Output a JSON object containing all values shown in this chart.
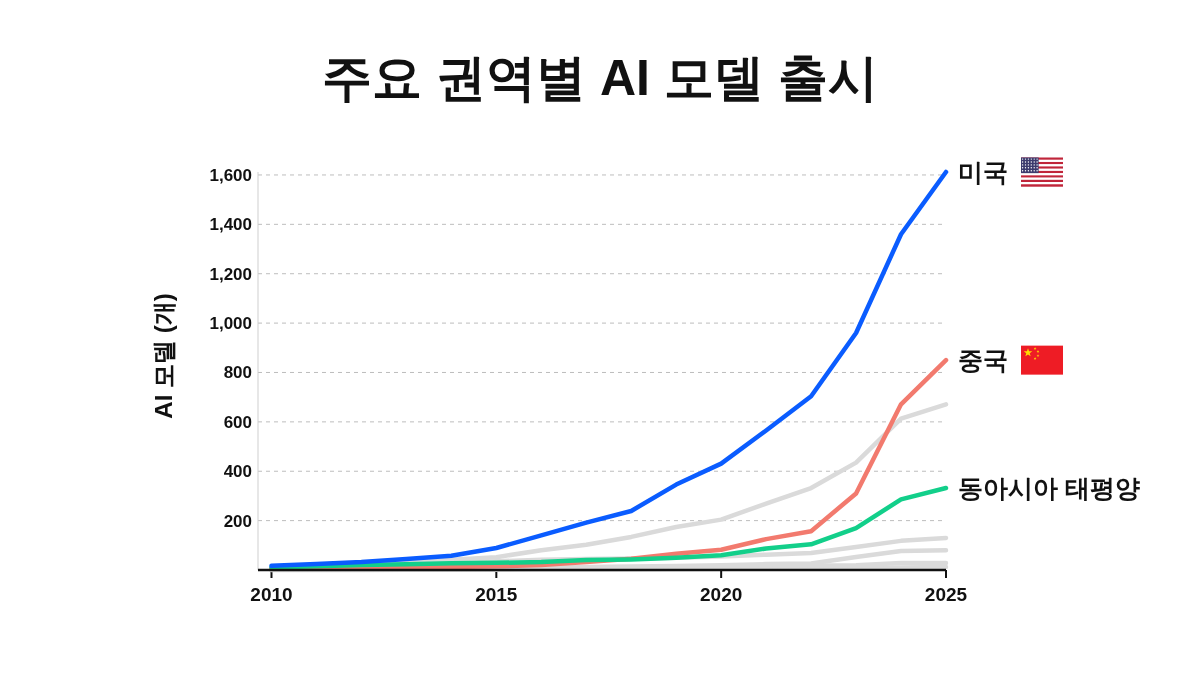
{
  "chart_data": {
    "type": "line",
    "title": "주요 권역별 AI 모델 출시",
    "ylabel": "AI 모델 (개)",
    "x": [
      2010,
      2011,
      2012,
      2013,
      2014,
      2015,
      2016,
      2017,
      2018,
      2019,
      2020,
      2021,
      2022,
      2023,
      2024,
      2025
    ],
    "series": [
      {
        "name": "미국",
        "color": "#0a5cff",
        "values": [
          17,
          24,
          32,
          45,
          58,
          89,
          140,
          192,
          239,
          346,
          431,
          565,
          704,
          960,
          1360,
          1612
        ]
      },
      {
        "name": "동아시아 태평양",
        "color": "#12cf8a",
        "values": [
          10,
          15,
          20,
          23,
          27,
          29,
          32,
          40,
          43,
          50,
          60,
          87,
          104,
          170,
          286,
          332
        ]
      },
      {
        "name": "중국",
        "color": "#f27a6e",
        "values": [
          5,
          6,
          8,
          10,
          12,
          15,
          20,
          32,
          46,
          66,
          82,
          125,
          157,
          310,
          671,
          850
        ]
      },
      {
        "color": "#dadada",
        "values": [
          10,
          14,
          20,
          30,
          42,
          52,
          80,
          102,
          134,
          174,
          204,
          269,
          332,
          435,
          613,
          671
        ]
      },
      {
        "color": "#dadada",
        "values": [
          5,
          8,
          12,
          18,
          25,
          35,
          42,
          45,
          47,
          50,
          55,
          62,
          69,
          93,
          118,
          130
        ]
      },
      {
        "color": "#dadada",
        "values": [
          2,
          3,
          4,
          5,
          6,
          8,
          10,
          12,
          14,
          16,
          19,
          24,
          26,
          53,
          77,
          80
        ]
      },
      {
        "color": "#dadada",
        "values": [
          1,
          1,
          2,
          2,
          3,
          4,
          5,
          6,
          8,
          10,
          12,
          15,
          18,
          19,
          28,
          28
        ]
      },
      {
        "color": "#dadada",
        "values": [
          0,
          0,
          0,
          1,
          1,
          1,
          2,
          2,
          3,
          4,
          5,
          6,
          7,
          8,
          10,
          12
        ]
      }
    ],
    "xlim": [
      2009.7,
      2025
    ],
    "xticks": [
      2010,
      2015,
      2020,
      2025
    ],
    "ylim": [
      0,
      1612
    ],
    "yticks": [
      200,
      400,
      600,
      800,
      {
        "value": 1000,
        "label": "1,000"
      },
      {
        "value": 1200,
        "label": "1,200"
      },
      {
        "value": 1400,
        "label": "1,400"
      },
      {
        "value": 1600,
        "label": "1,600"
      }
    ],
    "grid": "y",
    "line_style": "solid"
  }
}
